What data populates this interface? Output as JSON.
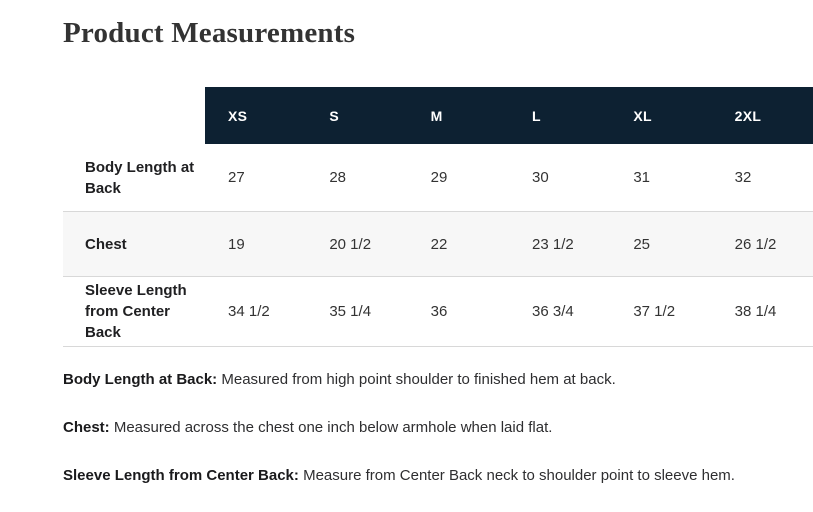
{
  "page": {
    "title": "Product Measurements"
  },
  "table": {
    "sizes": [
      "XS",
      "S",
      "M",
      "L",
      "XL",
      "2XL"
    ],
    "rows": [
      {
        "label": "Body Length at Back",
        "values": [
          "27",
          "28",
          "29",
          "30",
          "31",
          "32"
        ]
      },
      {
        "label": "Chest",
        "values": [
          "19",
          "20 1/2",
          "22",
          "23 1/2",
          "25",
          "26 1/2"
        ]
      },
      {
        "label": "Sleeve Length from Center Back",
        "values": [
          "34 1/2",
          "35 1/4",
          "36",
          "36 3/4",
          "37 1/2",
          "38 1/4"
        ]
      }
    ]
  },
  "notes": [
    {
      "term": "Body Length at Back:",
      "description": "Measured from high point shoulder to finished hem at back."
    },
    {
      "term": "Chest:",
      "description": "Measured across the chest one inch below armhole when laid flat."
    },
    {
      "term": "Sleeve Length from Center Back:",
      "description": "Measure from Center Back neck to shoulder point to sleeve hem."
    }
  ],
  "colors": {
    "header_bg": "#0d2132",
    "header_text": "#ffffff",
    "alt_row_bg": "#f7f7f7",
    "border": "#d8d8d8",
    "title_text": "#333333"
  }
}
